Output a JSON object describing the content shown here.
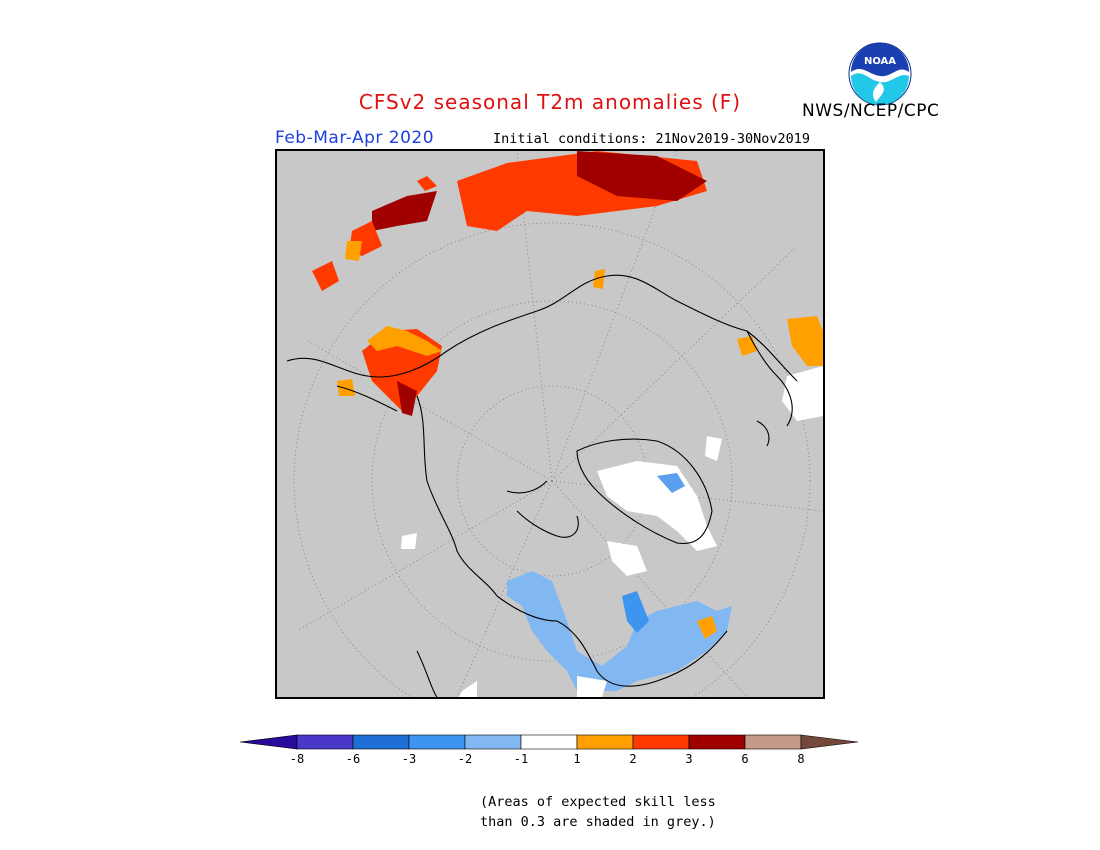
{
  "title": "CFSv2 seasonal T2m anomalies (F)",
  "period": "Feb-Mar-Apr 2020",
  "initial_conditions": "Initial conditions: 21Nov2019-30Nov2019",
  "agency": "NWS/NCEP/CPC",
  "logo_text": "NOAA",
  "colors": {
    "title": "#e01010",
    "period": "#2040e0",
    "skill_grey": "#c8c8c8"
  },
  "legend": {
    "ticks": [
      "-8",
      "-6",
      "-3",
      "-2",
      "-1",
      "1",
      "2",
      "3",
      "6",
      "8"
    ],
    "bins": [
      {
        "range": "< -8",
        "color": "#2a0a9a"
      },
      {
        "range": "-8 to -6",
        "color": "#4a38c8"
      },
      {
        "range": "-6 to -3",
        "color": "#1f6fd6"
      },
      {
        "range": "-3 to -2",
        "color": "#3d95f0"
      },
      {
        "range": "-2 to -1",
        "color": "#82b8f2"
      },
      {
        "range": "-1 to 1",
        "color": "#ffffff"
      },
      {
        "range": "1 to 2",
        "color": "#ffa000"
      },
      {
        "range": "2 to 3",
        "color": "#ff3a00"
      },
      {
        "range": "3 to 6",
        "color": "#a00000"
      },
      {
        "range": "6 to 8",
        "color": "#c49a88"
      },
      {
        "range": "> 8",
        "color": "#74483a"
      }
    ]
  },
  "note_lines": [
    "(Areas of expected skill less",
    "than 0.3 are shaded in grey.)"
  ]
}
